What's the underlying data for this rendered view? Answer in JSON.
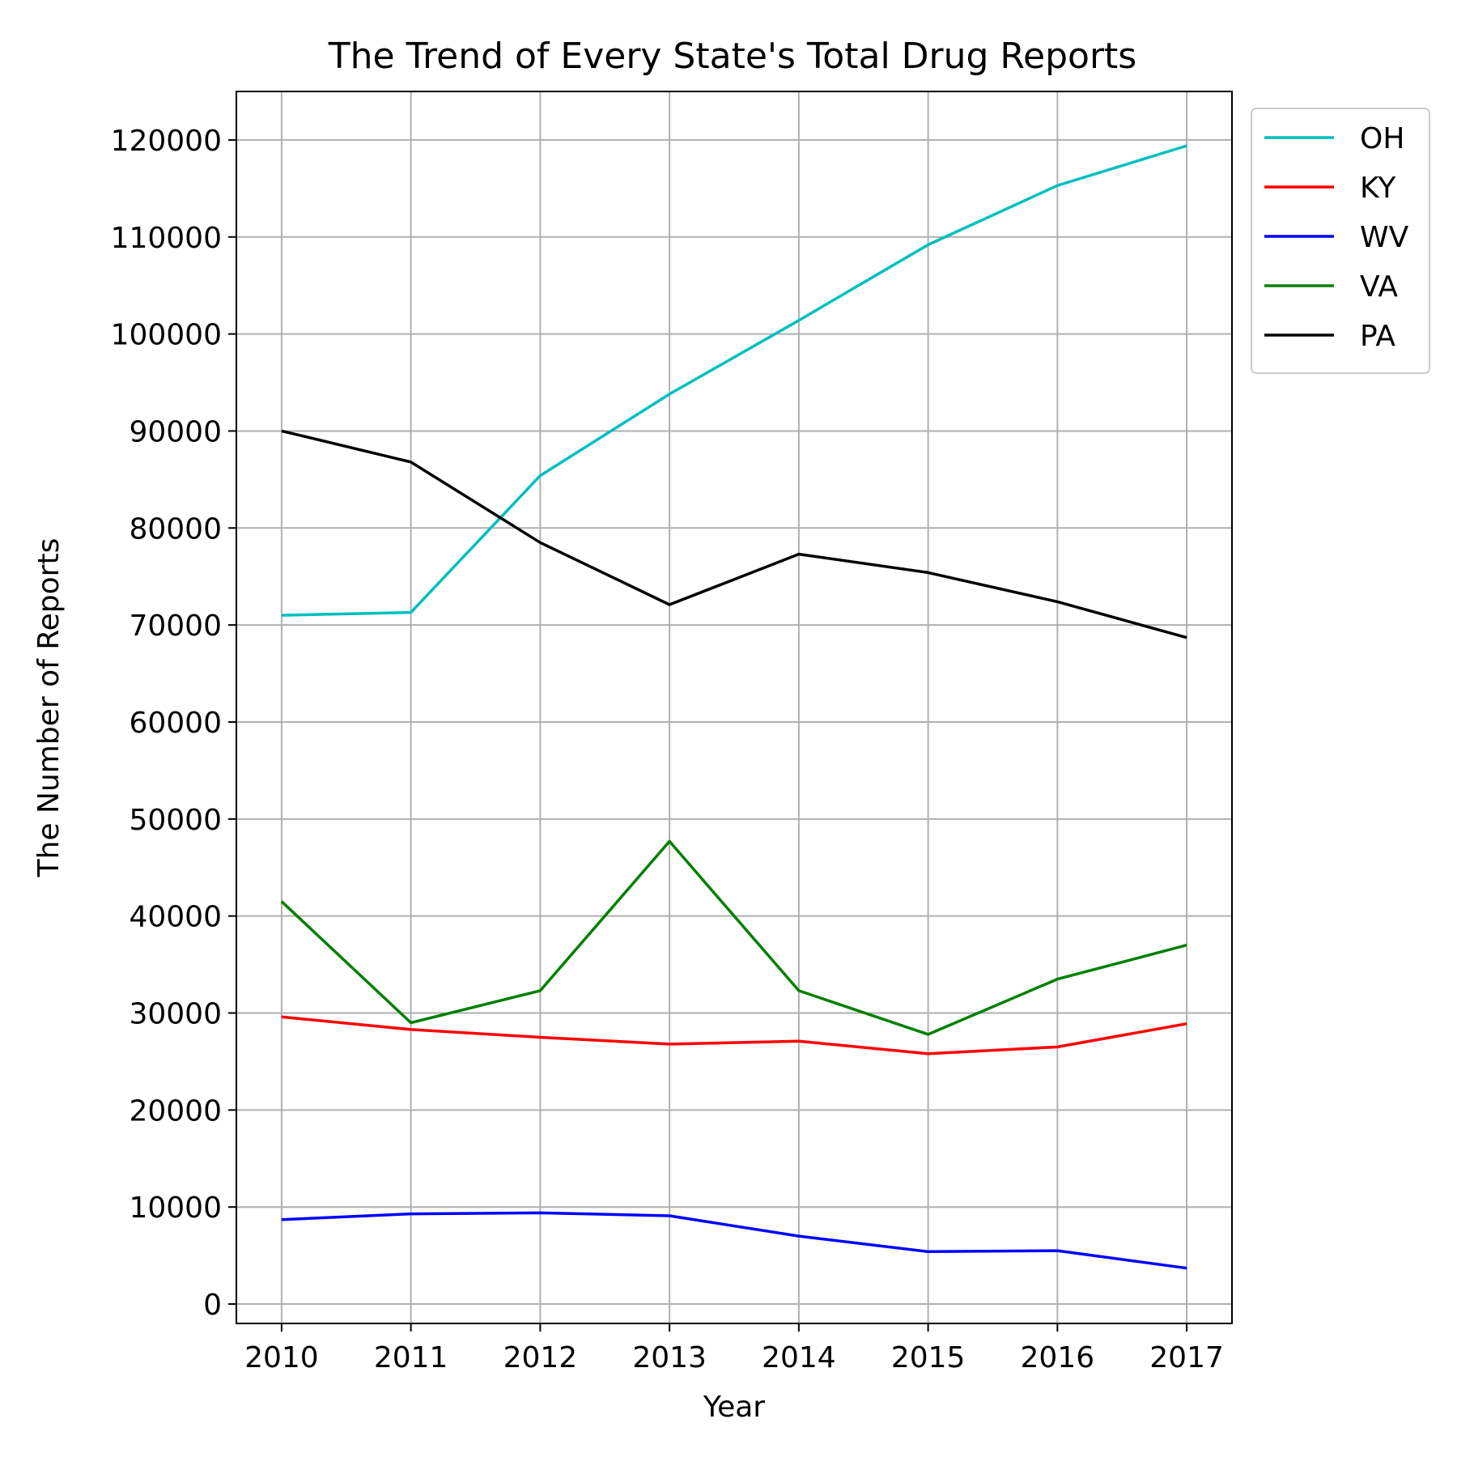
{
  "chart_data": {
    "type": "line",
    "title": "The Trend of Every State's Total Drug Reports",
    "xlabel": "Year",
    "ylabel": "The Number of Reports",
    "x": [
      2010,
      2011,
      2012,
      2013,
      2014,
      2015,
      2016,
      2017
    ],
    "x_tick_labels": [
      "2010",
      "2011",
      "2012",
      "2013",
      "2014",
      "2015",
      "2016",
      "2017"
    ],
    "xlim": [
      2009.65,
      2017.35
    ],
    "ylim": [
      -2000,
      125000
    ],
    "y_ticks": [
      0,
      10000,
      20000,
      30000,
      40000,
      50000,
      60000,
      70000,
      80000,
      90000,
      100000,
      110000,
      120000
    ],
    "y_tick_labels": [
      "0",
      "10000",
      "20000",
      "30000",
      "40000",
      "50000",
      "60000",
      "70000",
      "80000",
      "90000",
      "100000",
      "110000",
      "120000"
    ],
    "grid": true,
    "legend_position": "outside top-right",
    "series": [
      {
        "name": "OH",
        "color": "#00bfbf",
        "values": [
          71000,
          71300,
          85400,
          93800,
          101400,
          109200,
          115300,
          119400
        ]
      },
      {
        "name": "KY",
        "color": "#ff0000",
        "values": [
          29600,
          28300,
          27500,
          26800,
          27100,
          25800,
          26500,
          28900
        ]
      },
      {
        "name": "WV",
        "color": "#0000ff",
        "values": [
          8700,
          9300,
          9400,
          9100,
          7000,
          5400,
          5500,
          3700
        ]
      },
      {
        "name": "VA",
        "color": "#008000",
        "values": [
          41500,
          29000,
          32300,
          47700,
          32300,
          27800,
          33500,
          37000
        ]
      },
      {
        "name": "PA",
        "color": "#000000",
        "values": [
          90000,
          86800,
          78500,
          72100,
          77300,
          75400,
          72400,
          68700
        ]
      }
    ]
  }
}
